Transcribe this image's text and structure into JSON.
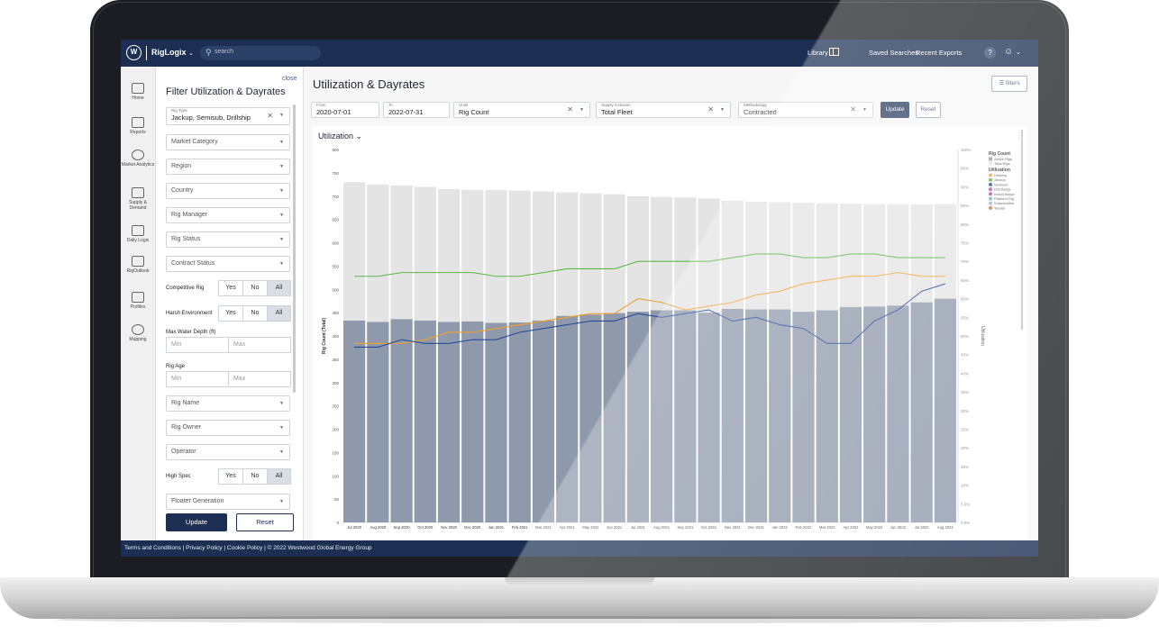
{
  "topbar": {
    "logo": "W",
    "brand": "RigLogix",
    "brand_caret": "⌄",
    "search_placeholder": "search",
    "library": "Library",
    "saved_searches": "Saved Searches",
    "recent_exports": "Recent Exports",
    "help": "?",
    "user_caret": "⌄"
  },
  "rail": [
    {
      "label": "Home",
      "icon": "home-icon"
    },
    {
      "label": "Reports",
      "icon": "reports-icon"
    },
    {
      "label": "Market Analytics",
      "icon": "market-analytics-icon"
    },
    {
      "label": "Supply & Demand",
      "icon": "supply-demand-icon"
    },
    {
      "label": "Daily Logix",
      "icon": "daily-logix-icon"
    },
    {
      "label": "RigOutlook",
      "icon": "rig-outlook-icon"
    },
    {
      "label": "Profiles",
      "icon": "profiles-icon"
    },
    {
      "label": "Mapping",
      "icon": "mapping-icon"
    }
  ],
  "filter_panel": {
    "title": "Filter Utilization & Dayrates",
    "close": "close",
    "rig_type_label": "Rig Type",
    "rig_type_value": "Jackup, Semisub, Drillship",
    "market_category": "Market Category",
    "region": "Region",
    "country": "Country",
    "rig_manager": "Rig Manager",
    "rig_status": "Rig Status",
    "contract_status": "Contract Status",
    "competitive_rig": "Competitive Rig",
    "harsh_environment": "Harsh Environment",
    "yes": "Yes",
    "no": "No",
    "all": "All",
    "max_water_depth": "Max Water Depth (ft)",
    "min": "Min",
    "max": "Max",
    "rig_age": "Rig Age",
    "rig_name": "Rig Name",
    "rig_owner": "Rig Owner",
    "operator": "Operator",
    "high_spec": "High Spec",
    "floater_generation": "Floater Generation",
    "update": "Update",
    "reset": "Reset"
  },
  "main": {
    "title": "Utilization & Dayrates",
    "filters": "filters",
    "from_label": "From",
    "from_value": "2020-07-01",
    "to_label": "To",
    "to_value": "2022-07-31",
    "units_label": "Units",
    "units_value": "Rig Count",
    "supply_label": "Supply Inclusion",
    "supply_value": "Total Fleet",
    "method_label": "Methodology",
    "method_value": "Contracted",
    "update": "Update",
    "reset": "Reset",
    "chart_title": "Utilization",
    "chart_title_caret": "⌄",
    "chart_menu": "⋮"
  },
  "footer": {
    "text": "Terms and Conditions  |  Privacy Policy  |  Cookie Policy  |  © 2022 Westwood Global Energy Group"
  },
  "colors": {
    "navy": "#1c2f52",
    "active_rigs": "#8e99ab",
    "total_rigs": "#e4e4e4",
    "drillship": "#f0a030",
    "jackup": "#5cb544",
    "semisub": "#274a9a",
    "drill_barge": "#b04fb0",
    "inland_barge": "#b04fb0",
    "platform_rig": "#6ab0d8",
    "submersible": "#9bb7c9",
    "tender": "#e06c2a"
  },
  "chart_data": {
    "type": "bar",
    "categories": [
      "Jul 2020",
      "Aug 2020",
      "Sep 2020",
      "Oct 2020",
      "Nov 2020",
      "Dec 2020",
      "Jan 2021",
      "Feb 2021",
      "Mar 2021",
      "Apr 2021",
      "May 2021",
      "Jun 2021",
      "Jul 2021",
      "Aug 2021",
      "Sep 2021",
      "Oct 2021",
      "Nov 2021",
      "Dec 2021",
      "Jan 2022",
      "Feb 2022",
      "Mar 2022",
      "Apr 2022",
      "May 2022",
      "Jun 2022",
      "Jul 2022",
      "Aug 2022"
    ],
    "ylabel": "Rig Count (Total)",
    "y2label": "Utilization",
    "ylim": [
      0,
      800
    ],
    "y2lim": [
      0,
      100
    ],
    "y_ticks": [
      0,
      50,
      100,
      150,
      200,
      250,
      300,
      350,
      400,
      450,
      500,
      550,
      600,
      650,
      700,
      750,
      800
    ],
    "y2_ticks": [
      "0.0%",
      "5.0%",
      "10%",
      "15%",
      "20%",
      "25%",
      "30%",
      "35%",
      "40%",
      "45%",
      "50%",
      "55%",
      "60%",
      "65%",
      "70%",
      "75%",
      "80%",
      "85%",
      "90%",
      "95%",
      "100%"
    ],
    "legend": {
      "rig_count_title": "Rig Count",
      "rig_count_items": [
        "Active Rigs",
        "Total Rigs"
      ],
      "utilization_title": "Utilization",
      "utilization_items": [
        "Drillship",
        "Jackup",
        "Semisub",
        "Drill Barge",
        "Inland Barge",
        "Platform Rig",
        "Submersible",
        "Tender"
      ],
      "placement": "right"
    },
    "bars": [
      {
        "name": "Total Rigs",
        "values": [
          730,
          725,
          723,
          720,
          715,
          713,
          713,
          712,
          710,
          708,
          706,
          704,
          700,
          698,
          697,
          695,
          690,
          688,
          687,
          686,
          685,
          684,
          683,
          683,
          682,
          683
        ]
      },
      {
        "name": "Active Rigs",
        "values": [
          433,
          430,
          436,
          433,
          430,
          431,
          428,
          429,
          433,
          443,
          446,
          449,
          452,
          455,
          455,
          450,
          458,
          457,
          457,
          452,
          455,
          462,
          463,
          465,
          472,
          480
        ]
      }
    ],
    "series": [
      {
        "name": "Drillship",
        "values": [
          48,
          48,
          48,
          49,
          51,
          51,
          52,
          53,
          54,
          55,
          56,
          56,
          60,
          59,
          57,
          58,
          59,
          61,
          62,
          64,
          65,
          66,
          66,
          67,
          66,
          66
        ]
      },
      {
        "name": "Jackup",
        "values": [
          66,
          66,
          67,
          67,
          67,
          67,
          66,
          66,
          67,
          68,
          68,
          68,
          70,
          70,
          70,
          70,
          71,
          72,
          72,
          71,
          71,
          72,
          72,
          71,
          71,
          71
        ]
      },
      {
        "name": "Semisub",
        "values": [
          47,
          47,
          49,
          48,
          48,
          49,
          49,
          51,
          52,
          53,
          54,
          54,
          56,
          55,
          56,
          57,
          54,
          55,
          53,
          52,
          48,
          48,
          54,
          57,
          62,
          64
        ]
      }
    ]
  }
}
